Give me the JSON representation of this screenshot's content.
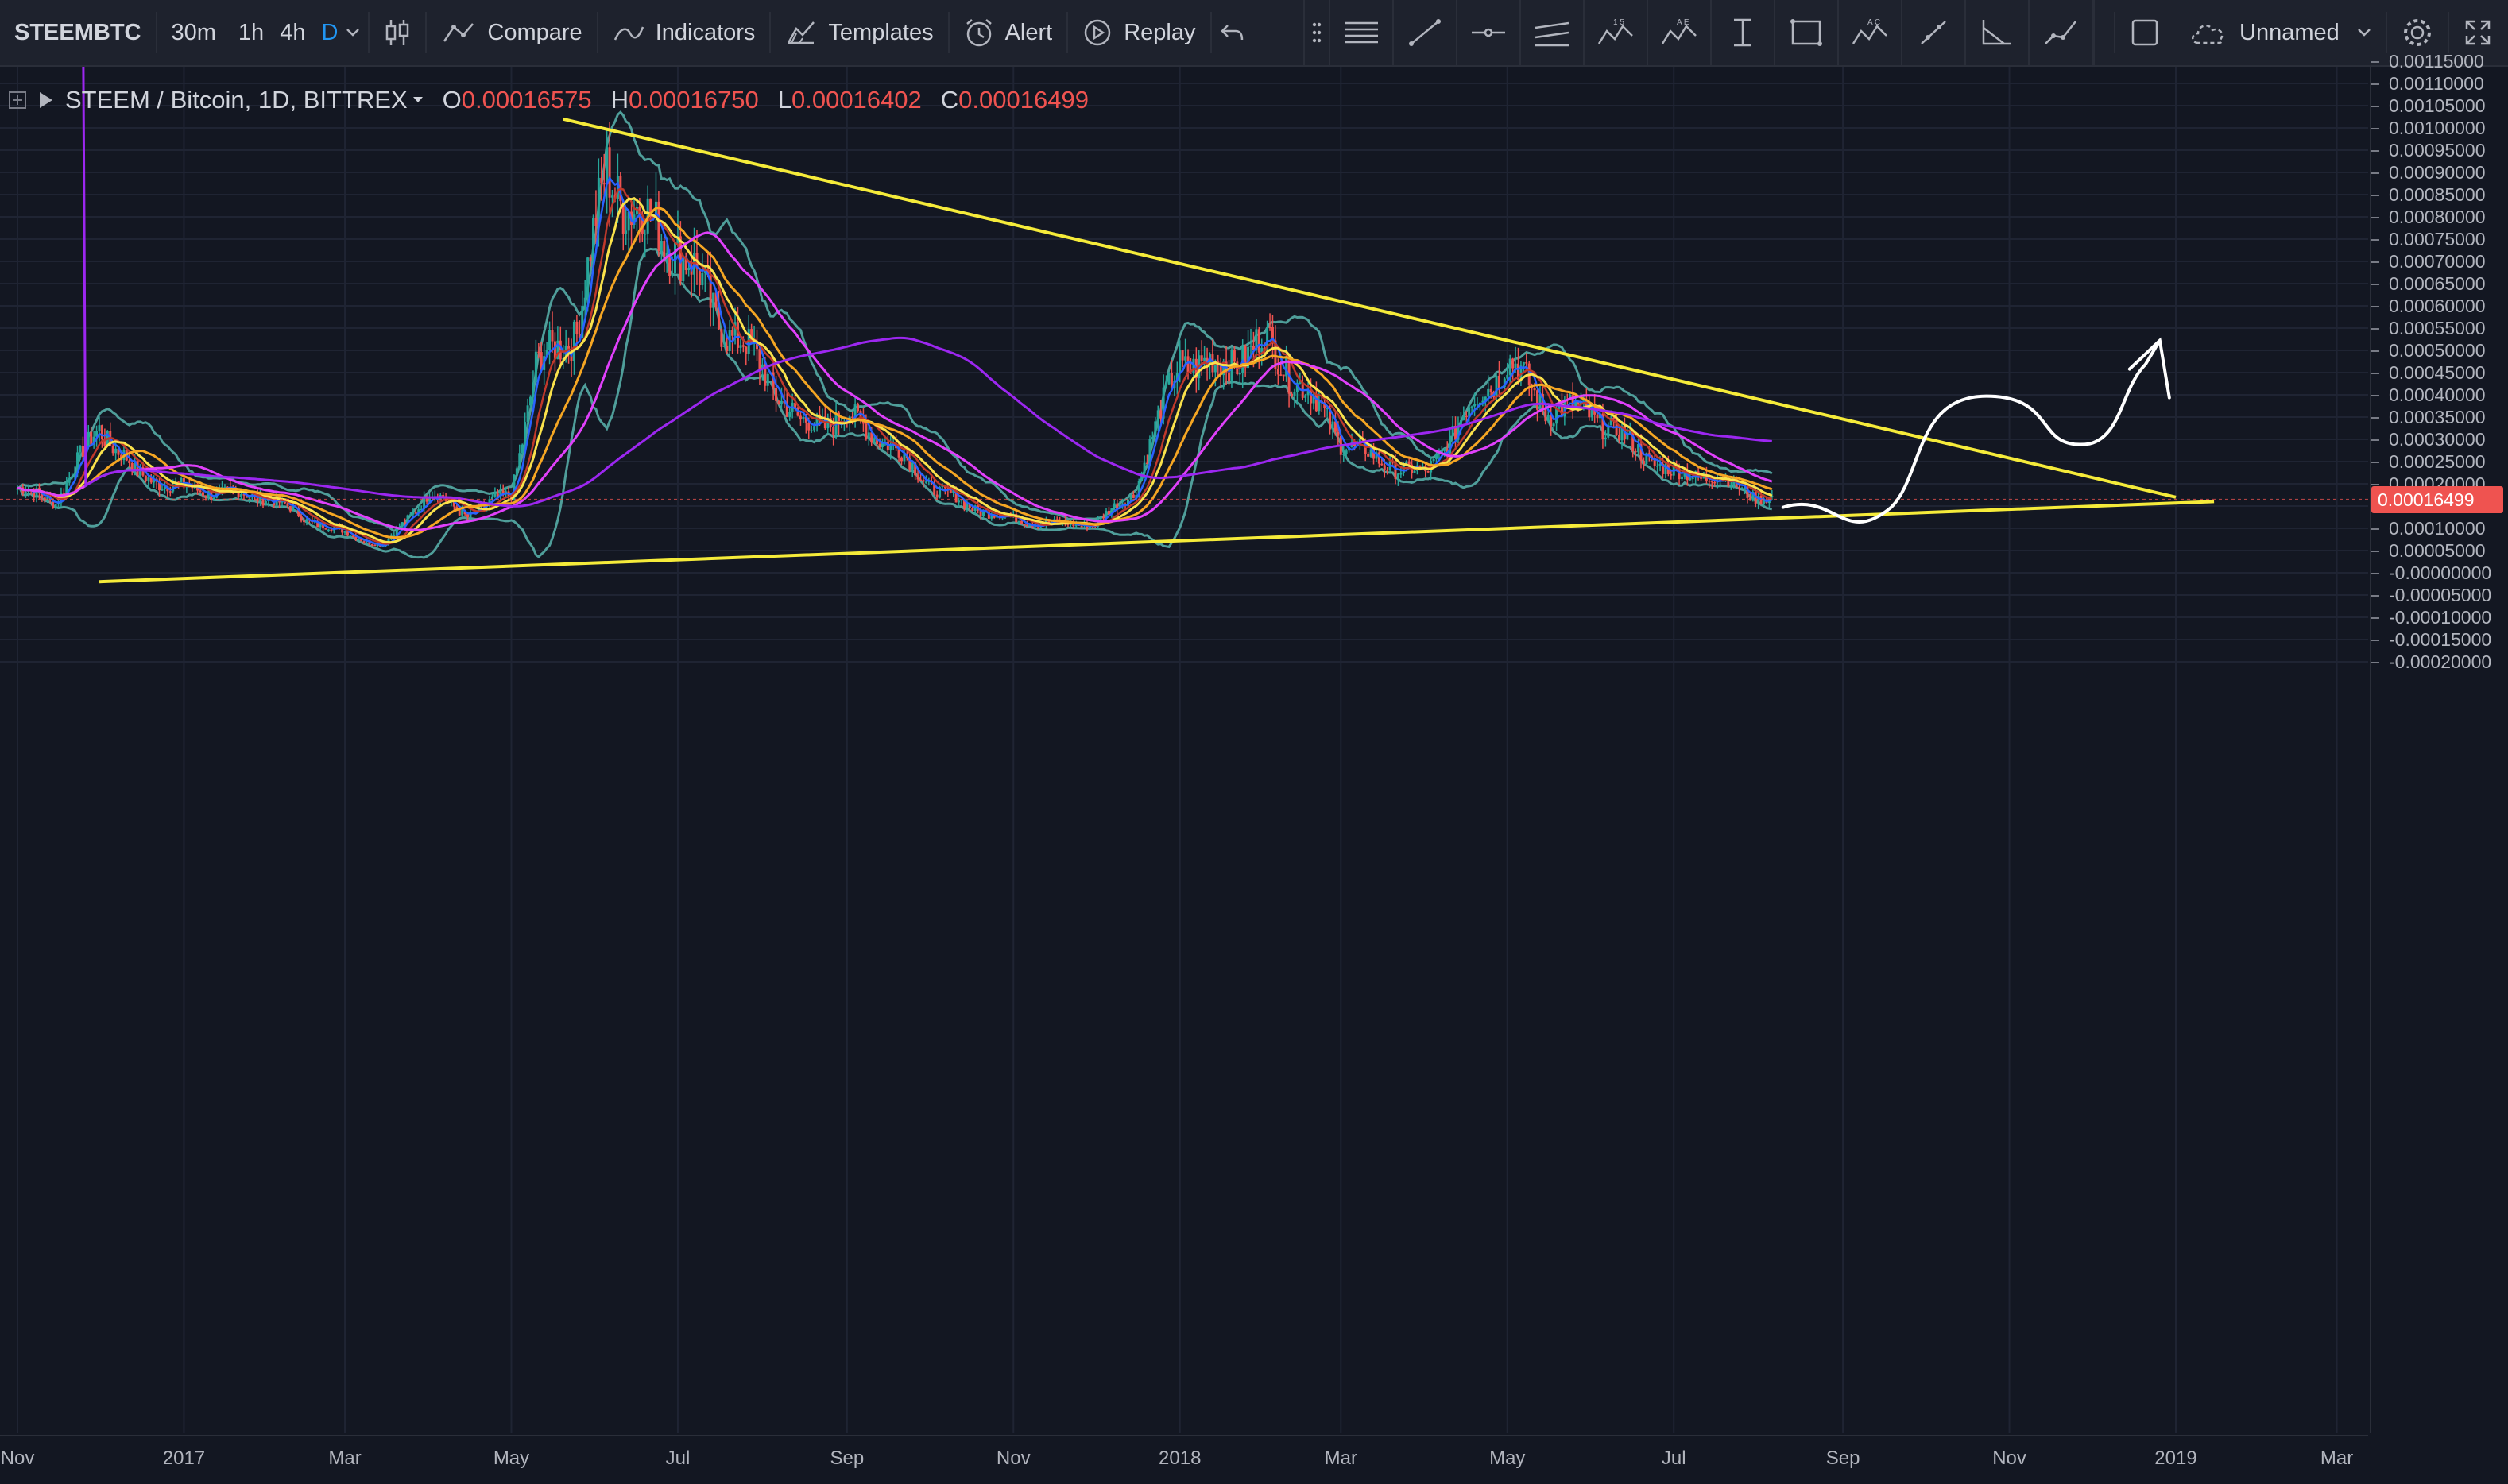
{
  "toolbar": {
    "symbol": "STEEMBTC",
    "intervals": [
      "30m",
      "1h",
      "4h",
      "D"
    ],
    "active_interval": "D",
    "compare_label": "Compare",
    "indicators_label": "Indicators",
    "templates_label": "Templates",
    "alert_label": "Alert",
    "replay_label": "Replay",
    "layout_name": "Unnamed"
  },
  "legend": {
    "title": "STEEM / Bitcoin, 1D, BITTREX",
    "o_label": "O",
    "o_value": "0.00016575",
    "h_label": "H",
    "h_value": "0.00016750",
    "l_label": "L",
    "l_value": "0.00016402",
    "c_label": "C",
    "c_value": "0.00016499"
  },
  "price_axis": {
    "labels": [
      "0.00115000",
      "0.00110000",
      "0.00105000",
      "0.00100000",
      "0.00095000",
      "0.00090000",
      "0.00085000",
      "0.00080000",
      "0.00075000",
      "0.00070000",
      "0.00065000",
      "0.00060000",
      "0.00055000",
      "0.00050000",
      "0.00045000",
      "0.00040000",
      "0.00035000",
      "0.00030000",
      "0.00025000",
      "0.00020000",
      "0.00016499",
      "0.00010000",
      "0.00005000",
      "-0.00000000",
      "-0.00005000",
      "-0.00010000",
      "-0.00015000",
      "-0.00020000"
    ],
    "current_price": "0.00016499"
  },
  "time_axis": {
    "labels": [
      "Nov",
      "2017",
      "Mar",
      "May",
      "Jul",
      "Sep",
      "Nov",
      "2018",
      "Mar",
      "May",
      "Jul",
      "Sep",
      "Nov",
      "2019",
      "Mar"
    ]
  },
  "colors": {
    "background": "#131722",
    "up": "#26a69a",
    "down": "#ef5350",
    "trendline": "#f5eb3a",
    "bollinger": "#4f9e9a",
    "ma_yellow": "#f9e14b",
    "ma_orange": "#f5a623",
    "ma_magenta": "#e040fb",
    "ma_purple": "#9c27f0",
    "ma_red": "#c0392b",
    "ma_blue": "#2962ff",
    "sketch": "#ffffff"
  },
  "chart_data": {
    "type": "candlestick",
    "symbol": "STEEM / Bitcoin",
    "interval": "1D",
    "exchange": "BITTREX",
    "ylim": [
      -0.00023,
      0.00118
    ],
    "x_range": [
      "2016-11",
      "2019-03"
    ],
    "price_path": [
      [
        "2016-11-01",
        0.00019
      ],
      [
        "2016-11-15",
        0.00016
      ],
      [
        "2016-12-01",
        0.00033
      ],
      [
        "2016-12-15",
        0.00022
      ],
      [
        "2017-01-01",
        0.00019
      ],
      [
        "2017-01-15",
        0.00018
      ],
      [
        "2017-02-01",
        0.00017
      ],
      [
        "2017-02-15",
        0.00012
      ],
      [
        "2017-03-01",
        9e-05
      ],
      [
        "2017-03-15",
        6e-05
      ],
      [
        "2017-04-01",
        0.00018
      ],
      [
        "2017-04-15",
        0.00013
      ],
      [
        "2017-05-01",
        0.00018
      ],
      [
        "2017-05-10",
        0.00046
      ],
      [
        "2017-05-25",
        0.00055
      ],
      [
        "2017-06-05",
        0.0009
      ],
      [
        "2017-06-20",
        0.00078
      ],
      [
        "2017-07-01",
        0.00074
      ],
      [
        "2017-07-15",
        0.00058
      ],
      [
        "2017-08-01",
        0.00046
      ],
      [
        "2017-08-15",
        0.00033
      ],
      [
        "2017-09-01",
        0.00035
      ],
      [
        "2017-09-15",
        0.0003
      ],
      [
        "2017-10-01",
        0.0002
      ],
      [
        "2017-10-15",
        0.00015
      ],
      [
        "2017-11-01",
        0.00012
      ],
      [
        "2017-11-15",
        0.00011
      ],
      [
        "2017-12-01",
        0.00011
      ],
      [
        "2017-12-15",
        0.00018
      ],
      [
        "2018-01-01",
        0.00048
      ],
      [
        "2018-01-15",
        0.00046
      ],
      [
        "2018-02-01",
        0.00052
      ],
      [
        "2018-02-15",
        0.00042
      ],
      [
        "2018-03-01",
        0.0003
      ],
      [
        "2018-03-15",
        0.00025
      ],
      [
        "2018-04-01",
        0.00022
      ],
      [
        "2018-04-15",
        0.00035
      ],
      [
        "2018-05-01",
        0.00048
      ],
      [
        "2018-05-15",
        0.00037
      ],
      [
        "2018-06-01",
        0.00036
      ],
      [
        "2018-06-15",
        0.00029
      ],
      [
        "2018-07-01",
        0.00022
      ],
      [
        "2018-07-15",
        0.00022
      ],
      [
        "2018-08-01",
        0.00017
      ],
      [
        "2018-08-06",
        0.00016499
      ]
    ],
    "last_candle": {
      "open": 0.00016575,
      "high": 0.0001675,
      "low": 0.00016402,
      "close": 0.00016499
    },
    "trendlines": [
      {
        "name": "upper",
        "from": [
          "2017-05-20",
          0.00102
        ],
        "to": [
          "2019-01-01",
          0.00017
        ]
      },
      {
        "name": "lower",
        "from": [
          "2016-12-01",
          -2e-05
        ],
        "to": [
          "2019-01-15",
          0.00016
        ]
      }
    ]
  }
}
